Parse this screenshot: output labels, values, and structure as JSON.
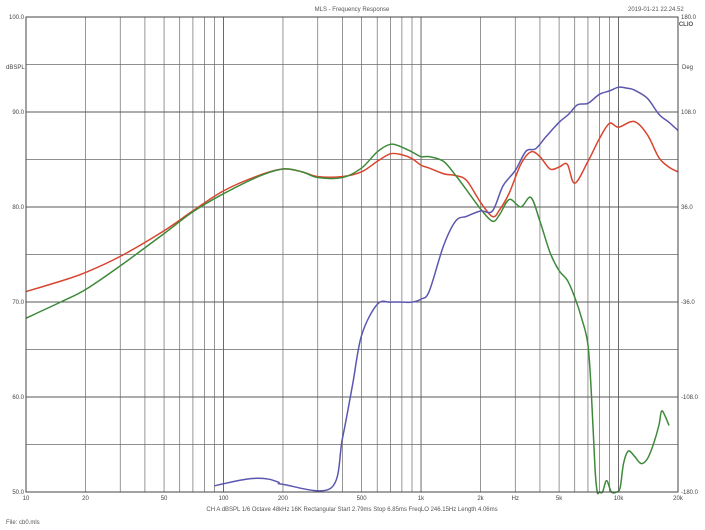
{
  "header": {
    "title": "MLS - Frequency Response",
    "timestamp": "2019-01-21 22.24.52",
    "brand": "CLIO"
  },
  "footer": {
    "settings": "CH A   dBSPL   1/6 Octave   48kHz   16K   Rectangular   Start 2.79ms   Stop 6.85ms   FreqLO 246.15Hz   Length 4.06ms",
    "file": "File: cb0.mls"
  },
  "chart_data": {
    "type": "line",
    "title": "MLS - Frequency Response",
    "x_scale": "log",
    "xlim": [
      10,
      20000
    ],
    "x_ticks": [
      {
        "value": 10,
        "label": "10"
      },
      {
        "value": 20,
        "label": "20"
      },
      {
        "value": 50,
        "label": "50"
      },
      {
        "value": 100,
        "label": "100"
      },
      {
        "value": 200,
        "label": "200"
      },
      {
        "value": 500,
        "label": "500"
      },
      {
        "value": 1000,
        "label": "1k"
      },
      {
        "value": 2000,
        "label": "2k"
      },
      {
        "value": 3000,
        "label": "Hz"
      },
      {
        "value": 5000,
        "label": "5k"
      },
      {
        "value": 10000,
        "label": "10k"
      },
      {
        "value": 20000,
        "label": "20k"
      }
    ],
    "ylabel_left": "dBSPL",
    "ylim_left": [
      50,
      100
    ],
    "y_ticks_left": [
      "100.0",
      "90.0",
      "80.0",
      "70.0",
      "60.0",
      "50.0"
    ],
    "ylabel_right": "Deg",
    "ylim_right": [
      -180,
      180
    ],
    "y_ticks_right": [
      "180.0",
      "108.0",
      "36.0",
      "-36.0",
      "-108.0",
      "-180.0"
    ],
    "grid": true,
    "series": [
      {
        "color": "#d9452f",
        "axis": "left",
        "x": [
          10,
          15,
          20,
          30,
          50,
          70,
          100,
          150,
          200,
          250,
          300,
          400,
          500,
          600,
          700,
          800,
          900,
          1000,
          1100,
          1300,
          1500,
          1700,
          2000,
          2300,
          2500,
          2800,
          3200,
          3600,
          4000,
          4500,
          5000,
          5500,
          6000,
          7000,
          8000,
          9000,
          10000,
          12000,
          14000,
          16000,
          18000,
          20000
        ],
        "values": [
          71.1,
          72.2,
          73.1,
          74.8,
          77.5,
          79.6,
          81.7,
          83.3,
          84.0,
          83.7,
          83.2,
          83.2,
          83.7,
          84.8,
          85.6,
          85.5,
          85.1,
          84.4,
          84.1,
          83.5,
          83.3,
          82.8,
          80.5,
          79.0,
          79.7,
          81.5,
          84.5,
          85.8,
          85.3,
          84.0,
          84.2,
          84.5,
          82.5,
          84.8,
          87.2,
          88.8,
          88.4,
          89.0,
          87.6,
          85.2,
          84.2,
          83.7
        ]
      },
      {
        "color": "#3e8a3a",
        "axis": "left",
        "x": [
          10,
          15,
          20,
          30,
          50,
          70,
          100,
          150,
          200,
          250,
          300,
          400,
          500,
          600,
          700,
          800,
          900,
          1000,
          1100,
          1300,
          1500,
          1700,
          2000,
          2300,
          2500,
          2800,
          3200,
          3600,
          4000,
          4500,
          5000,
          5500,
          6000,
          6500,
          7000,
          7300,
          7600,
          7800,
          8000,
          8300,
          8700,
          9200,
          9800,
          10200,
          10600,
          11200,
          12000,
          13000,
          14000,
          15000,
          16000,
          16500,
          17200,
          18000
        ],
        "values": [
          68.3,
          70.0,
          71.3,
          73.8,
          77.2,
          79.5,
          81.4,
          83.2,
          84.0,
          83.7,
          83.1,
          83.1,
          84.1,
          85.8,
          86.6,
          86.3,
          85.8,
          85.3,
          85.3,
          84.8,
          83.3,
          81.8,
          79.8,
          78.5,
          79.2,
          80.8,
          80.0,
          81.0,
          78.5,
          75.2,
          73.3,
          72.3,
          70.5,
          68.3,
          65.5,
          60.0,
          52.5,
          50.0,
          50.0,
          50.0,
          51.2,
          50.0,
          50.0,
          50.5,
          53.0,
          54.3,
          53.8,
          53.0,
          53.5,
          55.0,
          57.0,
          58.5,
          58.0,
          57.0
        ]
      },
      {
        "color": "#5b57b0",
        "axis": "right",
        "x": [
          90,
          110,
          130,
          150,
          170,
          190,
          200,
          350,
          400,
          450,
          500,
          600,
          700,
          800,
          900,
          1000,
          1100,
          1300,
          1500,
          1700,
          2000,
          2300,
          2600,
          3000,
          3400,
          3800,
          4300,
          5000,
          5600,
          6200,
          7000,
          8000,
          9000,
          10000,
          11000,
          12000,
          14000,
          16000,
          18000,
          20000
        ],
        "values": [
          -175.3,
          -172.4,
          -170.3,
          -169.6,
          -170.3,
          -172.6,
          -174.2,
          -177.0,
          -139.4,
          -98.9,
          -61.3,
          -37.8,
          -36.1,
          -36.1,
          -36.1,
          -33.8,
          -27.9,
          6.6,
          25.5,
          28.9,
          33.0,
          33.0,
          52.0,
          63.7,
          78.3,
          80.1,
          89.4,
          100.2,
          106.4,
          113.5,
          114.6,
          121.4,
          124.0,
          126.8,
          126.1,
          124.7,
          118.4,
          106.3,
          100.2,
          94.0
        ]
      }
    ]
  }
}
